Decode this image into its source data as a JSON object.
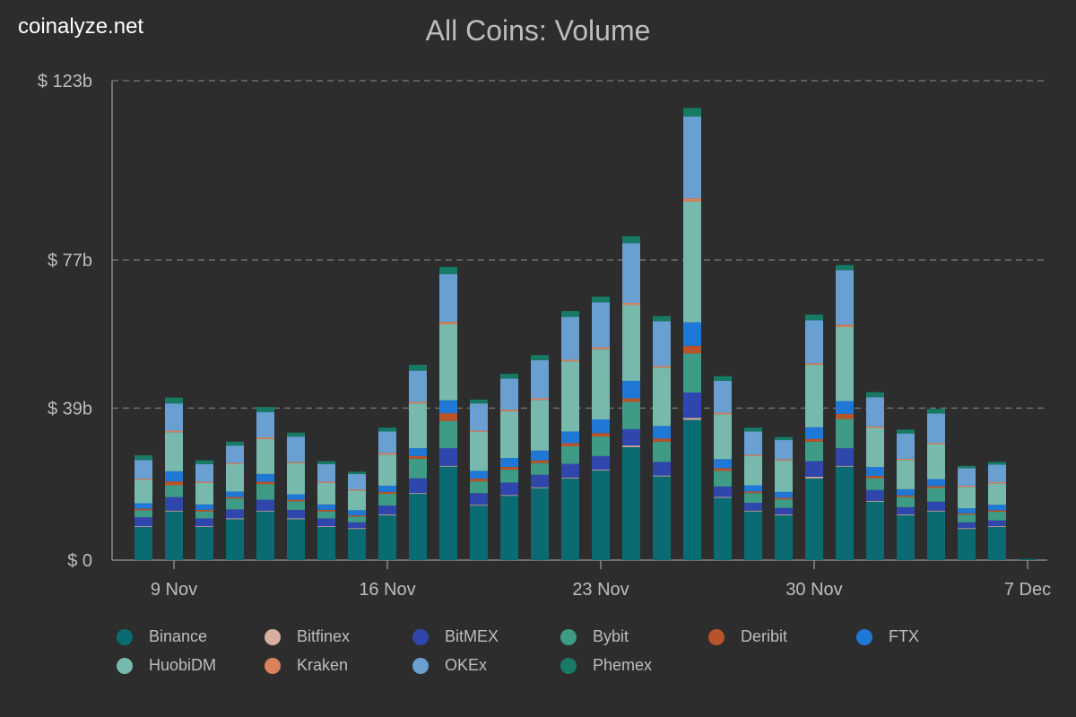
{
  "site": {
    "name": "coinalyze.net"
  },
  "chart_data": {
    "type": "bar",
    "stacked": true,
    "title": "All Coins: Volume",
    "xlabel": "",
    "ylabel": "",
    "ylim": [
      0,
      123
    ],
    "y_ticks": [
      {
        "value": 0,
        "label": "$ 0"
      },
      {
        "value": 39,
        "label": "$ 39b"
      },
      {
        "value": 77,
        "label": "$ 77b"
      },
      {
        "value": 123,
        "label": "$ 123b"
      }
    ],
    "x_ticks": [
      {
        "index": 1,
        "label": "9 Nov"
      },
      {
        "index": 8,
        "label": "16 Nov"
      },
      {
        "index": 15,
        "label": "23 Nov"
      },
      {
        "index": 22,
        "label": "30 Nov"
      },
      {
        "index": 29,
        "label": "7 Dec"
      }
    ],
    "categories": [
      "8 Nov",
      "9 Nov",
      "10 Nov",
      "11 Nov",
      "12 Nov",
      "13 Nov",
      "14 Nov",
      "15 Nov",
      "16 Nov",
      "17 Nov",
      "18 Nov",
      "19 Nov",
      "20 Nov",
      "21 Nov",
      "22 Nov",
      "23 Nov",
      "24 Nov",
      "25 Nov",
      "26 Nov",
      "27 Nov",
      "28 Nov",
      "29 Nov",
      "30 Nov",
      "1 Dec",
      "2 Dec",
      "3 Dec",
      "4 Dec",
      "5 Dec",
      "6 Dec",
      "7 Dec"
    ],
    "series": [
      {
        "name": "Binance",
        "color": "#0b6b73",
        "values": [
          8.5,
          12.5,
          8.5,
          10.5,
          12.5,
          10.5,
          8.5,
          8.0,
          11.5,
          17.0,
          24.0,
          14.0,
          16.5,
          18.5,
          21.0,
          23.0,
          29.0,
          21.5,
          36.0,
          16.0,
          12.5,
          11.5,
          21.0,
          24.0,
          15.0,
          11.5,
          12.5,
          8.0,
          8.5,
          0.3
        ]
      },
      {
        "name": "Bitfinex",
        "color": "#d8aea0",
        "values": [
          0.2,
          0.2,
          0.2,
          0.2,
          0.2,
          0.2,
          0.2,
          0.2,
          0.2,
          0.2,
          0.2,
          0.2,
          0.2,
          0.2,
          0.2,
          0.2,
          0.4,
          0.2,
          0.5,
          0.2,
          0.2,
          0.2,
          0.4,
          0.2,
          0.2,
          0.2,
          0.2,
          0.2,
          0.2,
          0
        ]
      },
      {
        "name": "BitMEX",
        "color": "#2f47ac",
        "values": [
          2.3,
          3.5,
          2.0,
          2.3,
          2.8,
          2.2,
          2.0,
          1.5,
          2.3,
          3.8,
          4.5,
          3.0,
          3.2,
          3.2,
          3.5,
          3.5,
          4.2,
          3.5,
          6.5,
          2.7,
          2.0,
          1.7,
          4.0,
          4.5,
          2.8,
          1.9,
          2.3,
          1.5,
          1.5,
          0
        ]
      },
      {
        "name": "Bybit",
        "color": "#3e9c86",
        "values": [
          1.8,
          3.0,
          1.8,
          2.8,
          4.0,
          2.2,
          1.8,
          1.5,
          3.0,
          5.0,
          7.0,
          3.0,
          3.3,
          3.0,
          4.5,
          5.0,
          7.0,
          5.2,
          10.0,
          4.0,
          2.5,
          2.2,
          5.0,
          7.5,
          3.0,
          2.6,
          3.5,
          2.0,
          2.2,
          0
        ]
      },
      {
        "name": "Deribit",
        "color": "#b8532a",
        "values": [
          0.4,
          1.0,
          0.4,
          0.4,
          0.6,
          0.4,
          0.4,
          0.3,
          0.5,
          0.7,
          2.0,
          0.7,
          0.7,
          0.7,
          0.8,
          0.9,
          0.9,
          0.8,
          2.0,
          0.7,
          0.4,
          0.4,
          0.7,
          1.3,
          0.6,
          0.4,
          0.5,
          0.3,
          0.4,
          0
        ]
      },
      {
        "name": "FTX",
        "color": "#1f78d6",
        "values": [
          1.4,
          2.6,
          1.4,
          1.4,
          2.0,
          1.4,
          1.4,
          1.3,
          1.6,
          2.0,
          3.3,
          2.0,
          2.3,
          2.5,
          3.0,
          3.5,
          4.5,
          3.2,
          6.0,
          2.3,
          1.6,
          1.5,
          3.0,
          3.3,
          2.3,
          1.6,
          1.8,
          1.3,
          1.4,
          0
        ]
      },
      {
        "name": "HuobiDM",
        "color": "#78b9ad",
        "values": [
          6.0,
          10.0,
          5.5,
          7.0,
          9.0,
          8.0,
          5.5,
          5.0,
          8.0,
          11.5,
          19.5,
          10.0,
          12.0,
          13.0,
          18.0,
          18.0,
          19.5,
          15.0,
          31.0,
          11.5,
          7.5,
          8.0,
          16.0,
          19.0,
          10.0,
          7.5,
          9.0,
          5.5,
          5.5,
          0
        ]
      },
      {
        "name": "Kraken",
        "color": "#d9825b",
        "values": [
          0.3,
          0.4,
          0.3,
          0.3,
          0.4,
          0.3,
          0.3,
          0.3,
          0.4,
          0.4,
          0.6,
          0.3,
          0.4,
          0.4,
          0.4,
          0.5,
          0.5,
          0.4,
          0.8,
          0.4,
          0.3,
          0.3,
          0.4,
          0.6,
          0.4,
          0.3,
          0.3,
          0.3,
          0.3,
          0
        ]
      },
      {
        "name": "OKEx",
        "color": "#6a9fd1",
        "values": [
          4.8,
          7.0,
          4.5,
          4.5,
          6.5,
          6.5,
          4.5,
          4.0,
          5.5,
          8.0,
          12.3,
          7.0,
          8.0,
          9.8,
          11.0,
          11.5,
          15.3,
          11.5,
          21.0,
          8.2,
          6.0,
          5.0,
          11.0,
          14.0,
          7.5,
          6.5,
          7.5,
          4.5,
          4.5,
          0
        ]
      },
      {
        "name": "Phemex",
        "color": "#167a64",
        "values": [
          1.2,
          1.5,
          1.0,
          1.0,
          1.3,
          1.0,
          0.8,
          0.6,
          1.0,
          1.5,
          1.8,
          1.0,
          1.2,
          1.3,
          1.5,
          1.5,
          1.8,
          1.3,
          2.2,
          1.2,
          1.0,
          0.8,
          1.5,
          1.3,
          1.3,
          1.0,
          1.2,
          0.6,
          0.7,
          0
        ]
      }
    ],
    "grid": true,
    "legend_position": "bottom"
  }
}
